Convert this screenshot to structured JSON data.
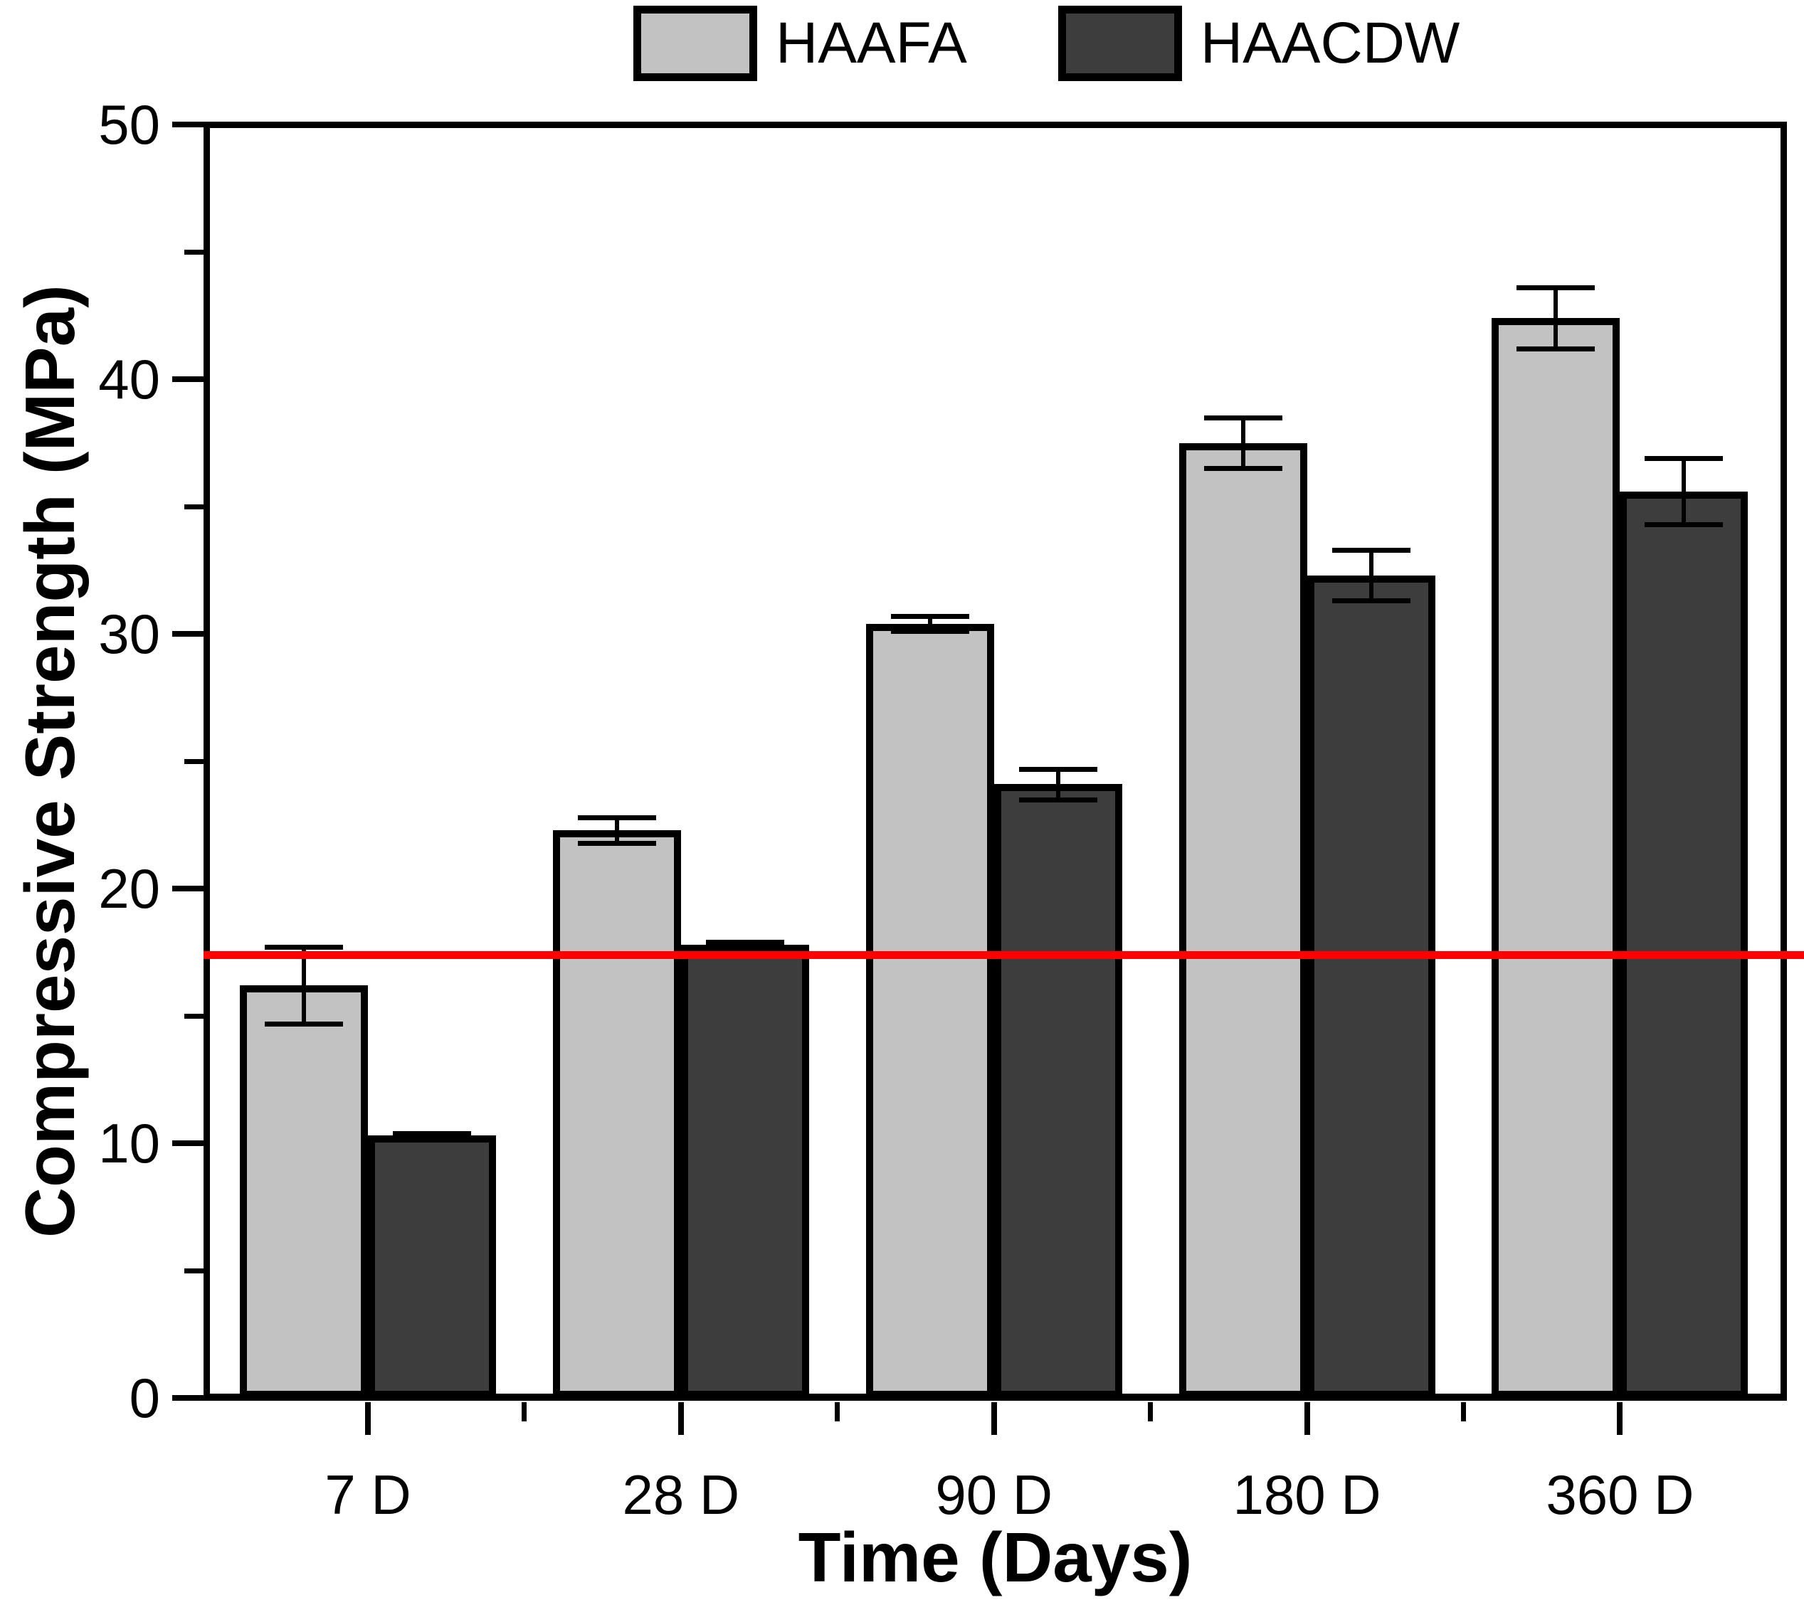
{
  "figure": {
    "background": "#ffffff"
  },
  "legend": {
    "items": [
      {
        "label": "HAAFA",
        "color": "#c2c2c2"
      },
      {
        "label": "HAACDW",
        "color": "#3d3d3d"
      }
    ]
  },
  "chart_data": {
    "type": "bar",
    "title": "",
    "xlabel": "Time (Days)",
    "ylabel": "Compressive Strength (MPa)",
    "categories": [
      "7 D",
      "28 D",
      "90 D",
      "180 D",
      "360 D"
    ],
    "series": [
      {
        "name": "HAAFA",
        "color": "#c2c2c2",
        "values": [
          16.2,
          22.3,
          30.4,
          37.5,
          42.4
        ],
        "errors": [
          1.5,
          0.5,
          0.3,
          1.0,
          1.2
        ]
      },
      {
        "name": "HAACDW",
        "color": "#3d3d3d",
        "values": [
          10.3,
          17.8,
          24.1,
          32.3,
          35.6
        ],
        "errors": [
          0.1,
          0.1,
          0.6,
          1.0,
          1.3
        ]
      }
    ],
    "reference_line": {
      "value": 17.4,
      "color": "#ff0000"
    },
    "ylim": [
      0,
      50
    ],
    "yticks": [
      "0",
      "10",
      "20",
      "30",
      "40",
      "50"
    ],
    "yticks_minor": [
      5,
      15,
      25,
      35,
      45
    ],
    "grid": false,
    "legend_position": "top-center",
    "bar_outline": "#000000"
  }
}
